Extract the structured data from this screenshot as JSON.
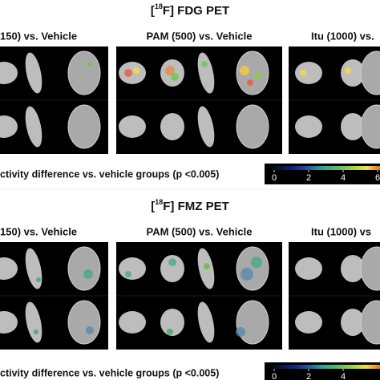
{
  "sections": [
    {
      "title": {
        "open": "[",
        "isotope": "18",
        "rest": "F] FDG PET"
      },
      "panels": [
        "150) vs. Vehicle",
        "PAM (500) vs. Vehicle",
        "Itu (1000) vs."
      ],
      "legend": {
        "label": "ctivity difference vs. vehicle groups (p <0.005)",
        "ticks": [
          0,
          2,
          4,
          6
        ]
      }
    },
    {
      "title": {
        "open": "[",
        "isotope": "18",
        "rest": "F] FMZ PET"
      },
      "panels": [
        "150) vs. Vehicle",
        "PAM (500) vs. Vehicle",
        "Itu (1000) vs"
      ],
      "legend": {
        "label": "ctivity difference vs. vehicle groups (p <0.005)",
        "ticks": [
          0,
          2,
          4
        ]
      }
    }
  ]
}
